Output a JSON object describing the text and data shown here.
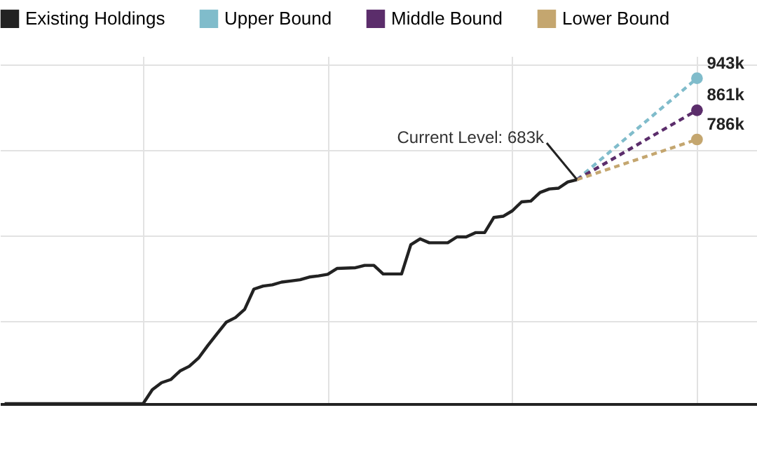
{
  "chart_data": {
    "type": "line",
    "legend": "top",
    "grid": true,
    "tick_labels": false,
    "ylim": [
      108,
      1000
    ],
    "yticks": [
      {
        "value": 320,
        "label": null
      },
      {
        "value": 540,
        "label": null
      },
      {
        "value": 760,
        "label": null
      },
      {
        "value": 980,
        "label": null
      }
    ],
    "categories": [
      null,
      null,
      null,
      null,
      null,
      null,
      null,
      null,
      null,
      null,
      null,
      null,
      null,
      null,
      null,
      null,
      null,
      null,
      null,
      null,
      null,
      null,
      null,
      null,
      null,
      null,
      null,
      null,
      null,
      null,
      null,
      null,
      null,
      null,
      null,
      null,
      null,
      null,
      null,
      null,
      null,
      null,
      null,
      null,
      null,
      null,
      null,
      null,
      null,
      null,
      null,
      null,
      null,
      null,
      null,
      null,
      null,
      null,
      null,
      null,
      null,
      null,
      null,
      null,
      null,
      null,
      null,
      null,
      null,
      null,
      null,
      null,
      null,
      null,
      null,
      null,
      null,
      null,
      null,
      null,
      null,
      null
    ],
    "annotations": [
      "Current Level: 683k"
    ],
    "series": [
      {
        "name": "Existing Holdings",
        "color": "#222222",
        "line_style": "solid",
        "values": [
          108,
          108,
          108,
          108,
          108,
          108,
          108,
          108,
          108,
          108,
          108,
          108,
          108,
          108,
          108,
          108,
          144,
          162,
          170,
          192,
          204,
          225,
          257,
          287,
          317,
          329,
          350,
          402,
          410,
          413,
          420,
          423,
          426,
          433,
          436,
          440,
          455,
          456,
          457,
          463,
          463,
          441,
          441,
          441,
          516,
          531,
          521,
          521,
          521,
          536,
          536,
          547,
          547,
          586,
          589,
          603,
          626,
          628,
          650,
          659,
          661,
          677,
          683,
          null,
          null,
          null,
          null,
          null,
          null,
          null,
          null,
          null,
          null,
          null,
          null,
          null,
          null,
          null,
          null,
          null,
          null,
          null
        ]
      },
      {
        "name": "Upper Bound",
        "color": "#80bccb",
        "line_style": "dashed",
        "marker": "circle",
        "values": [
          null,
          null,
          null,
          null,
          null,
          null,
          null,
          null,
          null,
          null,
          null,
          null,
          null,
          null,
          null,
          null,
          null,
          null,
          null,
          null,
          null,
          null,
          null,
          null,
          null,
          null,
          null,
          null,
          null,
          null,
          null,
          null,
          null,
          null,
          null,
          null,
          null,
          null,
          null,
          null,
          null,
          null,
          null,
          null,
          null,
          null,
          null,
          null,
          null,
          null,
          null,
          null,
          null,
          null,
          null,
          null,
          null,
          null,
          null,
          null,
          null,
          null,
          683,
          null,
          null,
          null,
          null,
          null,
          null,
          null,
          null,
          null,
          null,
          null,
          null,
          943,
          null,
          null,
          null,
          null,
          null,
          null
        ],
        "value_labels": [
          null,
          null,
          null,
          null,
          null,
          null,
          null,
          null,
          null,
          null,
          null,
          null,
          null,
          null,
          null,
          null,
          null,
          null,
          null,
          null,
          null,
          null,
          null,
          null,
          null,
          null,
          null,
          null,
          null,
          null,
          null,
          null,
          null,
          null,
          null,
          null,
          null,
          null,
          null,
          null,
          null,
          null,
          null,
          null,
          null,
          null,
          null,
          null,
          null,
          null,
          null,
          null,
          null,
          null,
          null,
          null,
          null,
          null,
          null,
          null,
          null,
          null,
          null,
          null,
          null,
          null,
          null,
          null,
          null,
          null,
          null,
          null,
          null,
          null,
          null,
          "943k",
          null,
          null,
          null,
          null,
          null,
          null
        ]
      },
      {
        "name": "Middle Bound",
        "color": "#5b2d6b",
        "line_style": "dashed",
        "marker": "circle",
        "values": [
          null,
          null,
          null,
          null,
          null,
          null,
          null,
          null,
          null,
          null,
          null,
          null,
          null,
          null,
          null,
          null,
          null,
          null,
          null,
          null,
          null,
          null,
          null,
          null,
          null,
          null,
          null,
          null,
          null,
          null,
          null,
          null,
          null,
          null,
          null,
          null,
          null,
          null,
          null,
          null,
          null,
          null,
          null,
          null,
          null,
          null,
          null,
          null,
          null,
          null,
          null,
          null,
          null,
          null,
          null,
          null,
          null,
          null,
          null,
          null,
          null,
          null,
          683,
          null,
          null,
          null,
          null,
          null,
          null,
          null,
          null,
          null,
          null,
          null,
          null,
          861,
          null,
          null,
          null,
          null,
          null,
          null
        ],
        "value_labels": [
          null,
          null,
          null,
          null,
          null,
          null,
          null,
          null,
          null,
          null,
          null,
          null,
          null,
          null,
          null,
          null,
          null,
          null,
          null,
          null,
          null,
          null,
          null,
          null,
          null,
          null,
          null,
          null,
          null,
          null,
          null,
          null,
          null,
          null,
          null,
          null,
          null,
          null,
          null,
          null,
          null,
          null,
          null,
          null,
          null,
          null,
          null,
          null,
          null,
          null,
          null,
          null,
          null,
          null,
          null,
          null,
          null,
          null,
          null,
          null,
          null,
          null,
          null,
          null,
          null,
          null,
          null,
          null,
          null,
          null,
          null,
          null,
          null,
          null,
          null,
          "861k",
          null,
          null,
          null,
          null,
          null,
          null
        ]
      },
      {
        "name": "Lower Bound",
        "color": "#c4a66f",
        "line_style": "dashed",
        "marker": "circle",
        "values": [
          null,
          null,
          null,
          null,
          null,
          null,
          null,
          null,
          null,
          null,
          null,
          null,
          null,
          null,
          null,
          null,
          null,
          null,
          null,
          null,
          null,
          null,
          null,
          null,
          null,
          null,
          null,
          null,
          null,
          null,
          null,
          null,
          null,
          null,
          null,
          null,
          null,
          null,
          null,
          null,
          null,
          null,
          null,
          null,
          null,
          null,
          null,
          null,
          null,
          null,
          null,
          null,
          null,
          null,
          null,
          null,
          null,
          null,
          null,
          null,
          null,
          null,
          683,
          null,
          null,
          null,
          null,
          null,
          null,
          null,
          null,
          null,
          null,
          null,
          null,
          786,
          null,
          null,
          null,
          null,
          null,
          null
        ],
        "value_labels": [
          null,
          null,
          null,
          null,
          null,
          null,
          null,
          null,
          null,
          null,
          null,
          null,
          null,
          null,
          null,
          null,
          null,
          null,
          null,
          null,
          null,
          null,
          null,
          null,
          null,
          null,
          null,
          null,
          null,
          null,
          null,
          null,
          null,
          null,
          null,
          null,
          null,
          null,
          null,
          null,
          null,
          null,
          null,
          null,
          null,
          null,
          null,
          null,
          null,
          null,
          null,
          null,
          null,
          null,
          null,
          null,
          null,
          null,
          null,
          null,
          null,
          null,
          null,
          null,
          null,
          null,
          null,
          null,
          null,
          null,
          null,
          null,
          null,
          null,
          null,
          "786k",
          null,
          null,
          null,
          null,
          null,
          null
        ]
      }
    ]
  }
}
